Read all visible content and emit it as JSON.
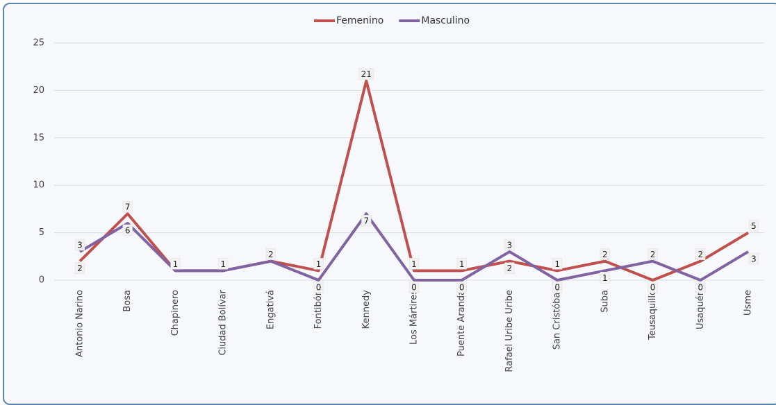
{
  "chart_data": {
    "type": "line",
    "categories": [
      "Antonio Narino",
      "Bosa",
      "Chapinero",
      "Ciudad Bolívar",
      "Engativá",
      "Fontibón",
      "Kennedy",
      "Los Mártires",
      "Puente Aranda",
      "Rafael Uribe Uribe",
      "San Cristóbal",
      "Suba",
      "Teusaquillo",
      "Usaquén",
      "Usme"
    ],
    "series": [
      {
        "name": "Femenino",
        "color": "#c0504d",
        "values": [
          2,
          7,
          1,
          1,
          2,
          1,
          21,
          1,
          1,
          2,
          1,
          2,
          0,
          2,
          5
        ]
      },
      {
        "name": "Masculino",
        "color": "#8064a2",
        "values": [
          3,
          6,
          1,
          1,
          2,
          0,
          7,
          0,
          0,
          3,
          0,
          1,
          2,
          0,
          3
        ]
      }
    ],
    "ylim": [
      0,
      25
    ],
    "yticks": [
      0,
      5,
      10,
      15,
      20,
      25
    ],
    "grid": true,
    "legend": "top"
  }
}
